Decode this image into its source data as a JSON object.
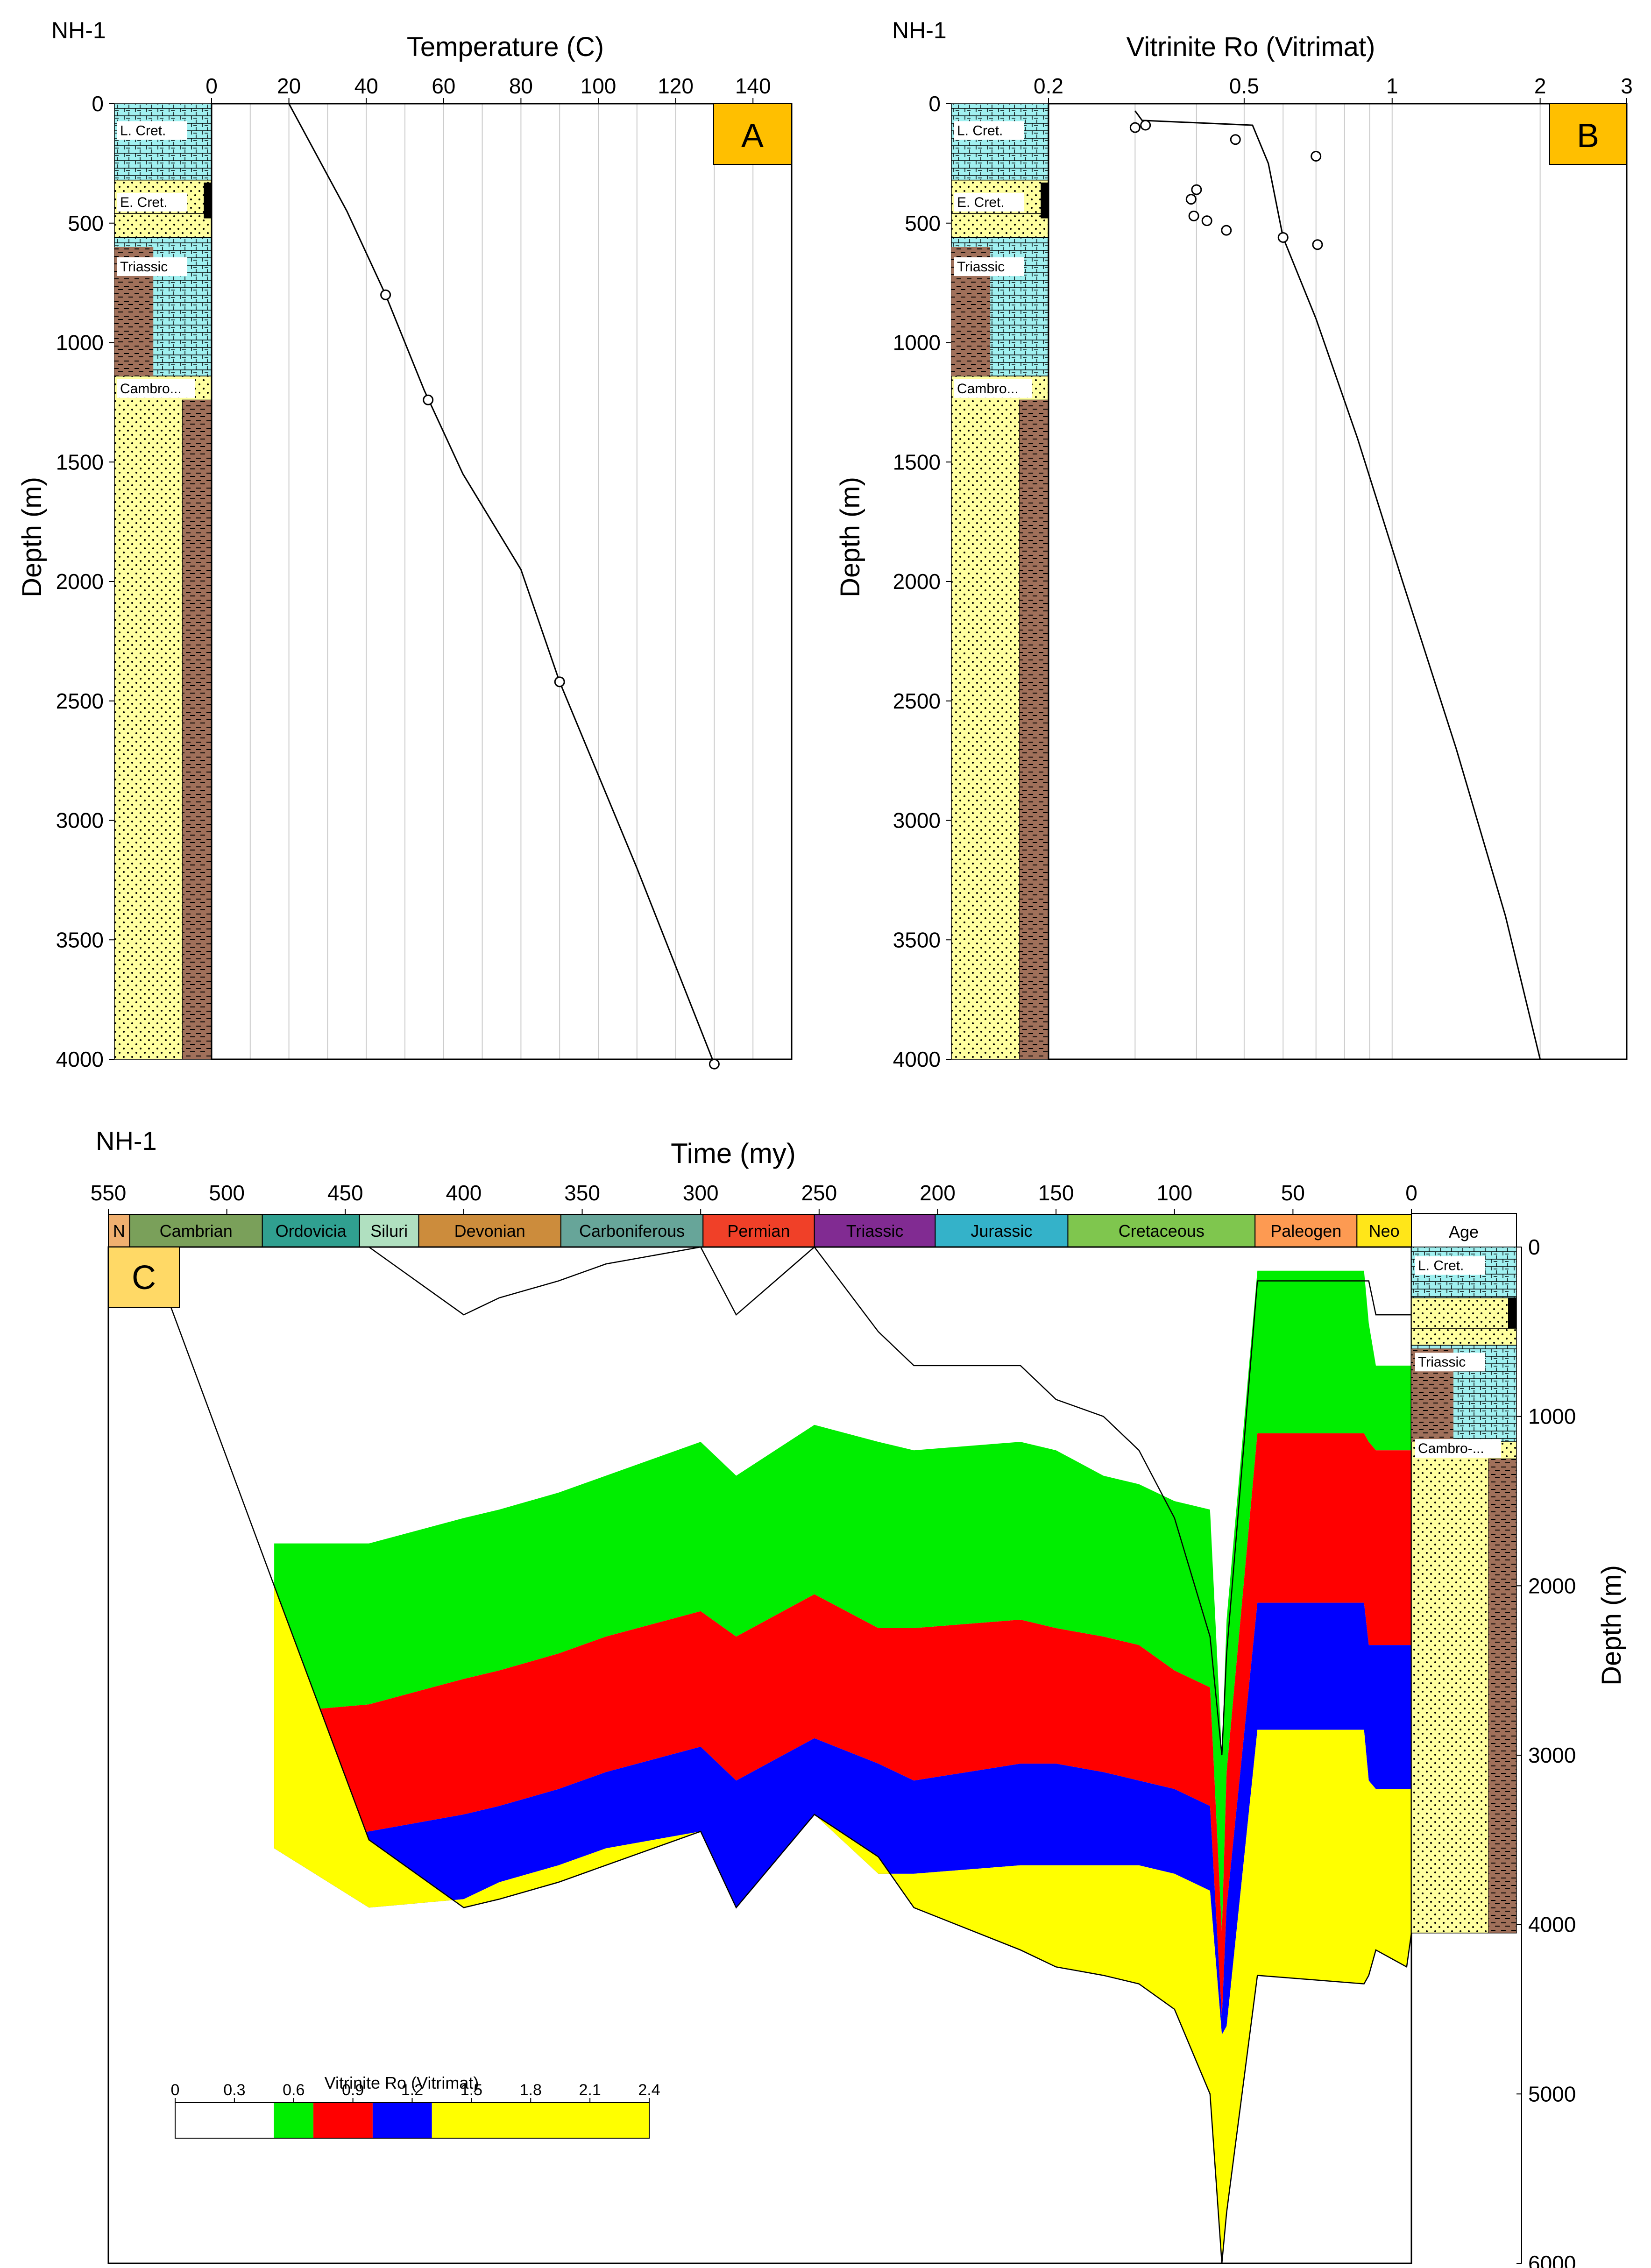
{
  "colors": {
    "green": "#00ee00",
    "red": "#ff0000",
    "blue": "#0000ff",
    "yellow": "#ffff00",
    "sand": "#ffffa0",
    "shale": "#a0705a",
    "lime": "#a0f0f0",
    "badge_a": "#ffbf00",
    "badge_c": "#ffd966"
  },
  "panel_a": {
    "well": "NH-1",
    "badge": "A",
    "chart_data": {
      "type": "line",
      "title": "Temperature (C)",
      "xlabel": "Temperature (C)",
      "ylabel": "Depth (m)",
      "xlim": [
        0,
        150
      ],
      "ylim": [
        4000,
        0
      ],
      "x_ticks": [
        "0",
        "20",
        "40",
        "60",
        "80",
        "100",
        "120",
        "140"
      ],
      "y_ticks": [
        "0",
        "500",
        "1000",
        "1500",
        "2000",
        "2500",
        "3000",
        "3500",
        "4000"
      ],
      "grid": true,
      "series": [
        {
          "kind": "line",
          "x": [
            20,
            35,
            45,
            55,
            65,
            80,
            90,
            110,
            130
          ],
          "y": [
            0,
            450,
            800,
            1200,
            1550,
            1950,
            2420,
            3200,
            4020
          ]
        },
        {
          "kind": "points",
          "x": [
            45,
            56,
            90,
            130
          ],
          "y": [
            800,
            1240,
            2420,
            4020
          ]
        }
      ]
    },
    "column": {
      "labels": [
        "L. Cret.",
        "E. Cret.",
        "Triassic",
        "Cambro..."
      ]
    }
  },
  "panel_b": {
    "well": "NH-1",
    "badge": "B",
    "chart_data": {
      "type": "scatter",
      "title": "Vitrinite Ro (Vitrimat)",
      "xlabel": "Vitrinite Ro (Vitrimat)",
      "ylabel": "Depth (m)",
      "xscale": "log",
      "xlim": [
        0.2,
        3
      ],
      "ylim": [
        4000,
        0
      ],
      "x_ticks": [
        "0.2",
        "0.5",
        "1",
        "2",
        "3"
      ],
      "y_ticks": [
        "0",
        "500",
        "1000",
        "1500",
        "2000",
        "2500",
        "3000",
        "3500",
        "4000"
      ],
      "grid": true,
      "series": [
        {
          "kind": "line",
          "x": [
            0.3,
            0.31,
            0.52,
            0.56,
            0.6,
            0.7,
            0.85,
            1.05,
            1.35,
            1.7,
            2.0
          ],
          "y": [
            30,
            70,
            90,
            250,
            560,
            900,
            1400,
            2000,
            2700,
            3400,
            4000
          ]
        },
        {
          "kind": "points",
          "x": [
            0.3,
            0.315,
            0.48,
            0.7,
            0.4,
            0.39,
            0.395,
            0.42,
            0.46,
            0.6,
            0.705
          ],
          "y": [
            100,
            90,
            150,
            220,
            360,
            400,
            470,
            490,
            530,
            560,
            590
          ]
        }
      ]
    },
    "column": {
      "labels": [
        "L. Cret.",
        "E. Cret.",
        "Triassic",
        "Cambro..."
      ]
    }
  },
  "panel_c": {
    "well": "NH-1",
    "badge": "C",
    "chart_data": {
      "type": "area",
      "title": "Time (my)",
      "xlabel": "Time (my)",
      "ylabel": "Depth (m)",
      "xlim": [
        550,
        0
      ],
      "ylim": [
        6000,
        0
      ],
      "x_ticks": [
        "550",
        "500",
        "450",
        "400",
        "350",
        "300",
        "250",
        "200",
        "150",
        "100",
        "50",
        "0"
      ],
      "y_ticks": [
        "0",
        "1000",
        "2000",
        "3000",
        "4000",
        "5000",
        "6000"
      ],
      "periods": [
        "N",
        "Cambrian",
        "Ordovicia",
        "Siluri",
        "Devonian",
        "Carboniferous",
        "Permian",
        "Triassic",
        "Jurassic",
        "Cretaceous",
        "Paleogen",
        "Neo"
      ],
      "age_label": "Age",
      "time_x": [
        533,
        480,
        440,
        400,
        385,
        360,
        340,
        300,
        285,
        252,
        225,
        210,
        165,
        150,
        130,
        115,
        100,
        85,
        80,
        78,
        65,
        20,
        18,
        15,
        2,
        0
      ],
      "basement": [
        0,
        2000,
        3500,
        3900,
        3850,
        3750,
        3650,
        3450,
        3900,
        3350,
        3600,
        3900,
        4150,
        4250,
        4300,
        4350,
        4500,
        5000,
        6000,
        5700,
        4300,
        4350,
        4300,
        4150,
        4250,
        4050
      ],
      "horizons": [
        [
          null,
          1750,
          1750,
          1600,
          1550,
          1450,
          1350,
          1150,
          1350,
          1050,
          1150,
          1200,
          1150,
          1200,
          1350,
          1400,
          1500,
          1550,
          3000,
          2200,
          140,
          140,
          450,
          700,
          700,
          700
        ],
        [
          null,
          2750,
          2700,
          2550,
          2500,
          2400,
          2300,
          2150,
          2300,
          2050,
          2250,
          2250,
          2200,
          2250,
          2300,
          2350,
          2500,
          2600,
          4050,
          3100,
          1100,
          1100,
          1150,
          1200,
          1200,
          1200
        ],
        [
          null,
          3550,
          3450,
          3350,
          3300,
          3200,
          3100,
          2950,
          3150,
          2900,
          3050,
          3150,
          3050,
          3050,
          3100,
          3150,
          3200,
          3300,
          4550,
          3900,
          2100,
          2100,
          2350,
          2350,
          2350,
          2350
        ],
        [
          null,
          3550,
          3900,
          3850,
          3750,
          3650,
          3550,
          3450,
          3900,
          3350,
          3700,
          3700,
          3650,
          3650,
          3650,
          3650,
          3700,
          3800,
          4650,
          4600,
          2850,
          2850,
          3150,
          3200,
          3200,
          3200
        ]
      ],
      "burial_lines": [
        [
          0,
          0,
          0,
          400,
          300,
          200,
          100,
          0,
          400,
          0,
          500,
          700,
          700,
          900,
          1000,
          1200,
          1600,
          2300,
          3000,
          2400,
          200,
          200,
          200,
          400,
          400,
          400
        ]
      ],
      "legend": {
        "title": "Vitrinite Ro (Vitrimat)",
        "ticks": [
          "0",
          "0.3",
          "0.6",
          "0.9",
          "1.2",
          "1.5",
          "1.8",
          "2.1",
          "2.4"
        ],
        "bins": [
          {
            "from": 0,
            "to": 0.5,
            "color": "#ffffff"
          },
          {
            "from": 0.5,
            "to": 0.7,
            "color": "#00ee00"
          },
          {
            "from": 0.7,
            "to": 1.0,
            "color": "#ff0000"
          },
          {
            "from": 1.0,
            "to": 1.3,
            "color": "#0000ff"
          },
          {
            "from": 1.3,
            "to": 2.4,
            "color": "#ffff00"
          }
        ]
      }
    },
    "column": {
      "labels": [
        "L. Cret.",
        "Triassic",
        "Cambro-..."
      ]
    }
  }
}
